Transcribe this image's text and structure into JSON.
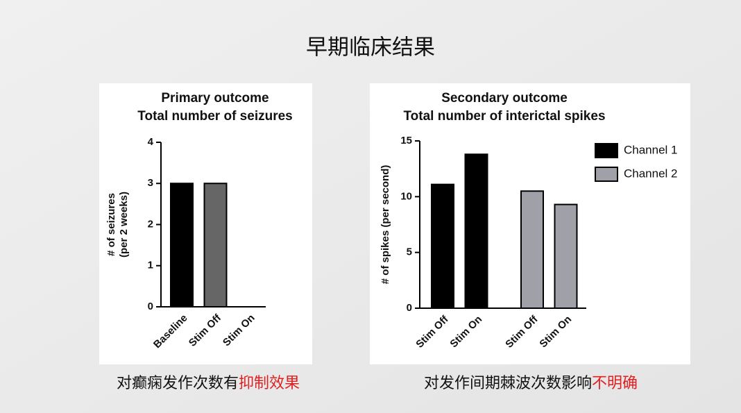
{
  "title": "早期临床结果",
  "captions": [
    {
      "text": "对癫痫发作次数有",
      "highlight": "抑制效果",
      "highlight_color": "#e02020"
    },
    {
      "text": "对发作间期棘波次数影响",
      "highlight": "不明确",
      "highlight_color": "#e02020"
    }
  ],
  "chart_data": [
    {
      "type": "bar",
      "title": [
        "Primary outcome",
        "Total number of seizures"
      ],
      "ylabel": [
        "# of seizures",
        "(per 2 weeks)"
      ],
      "categories": [
        "Baseline",
        "Stim Off",
        "Stim On"
      ],
      "series": [
        {
          "colors": [
            "#000000",
            "#666666",
            "#666666"
          ],
          "values": [
            3,
            3,
            0
          ]
        }
      ],
      "ylim": [
        0,
        4
      ],
      "yticks": [
        0,
        1,
        2,
        3,
        4
      ]
    },
    {
      "type": "bar",
      "title": [
        "Secondary outcome",
        "Total number of interictal spikes"
      ],
      "ylabel": [
        "# of spikes (per second)"
      ],
      "categories": [
        "Stim Off",
        "Stim On"
      ],
      "series": [
        {
          "name": "Channel 1",
          "color": "#000000",
          "values": [
            11.1,
            13.8
          ]
        },
        {
          "name": "Channel 2",
          "color": "#a0a0a8",
          "values": [
            10.5,
            9.3
          ]
        }
      ],
      "ylim": [
        0,
        15
      ],
      "yticks": [
        0,
        5,
        10,
        15
      ],
      "legend": "top-right"
    }
  ]
}
